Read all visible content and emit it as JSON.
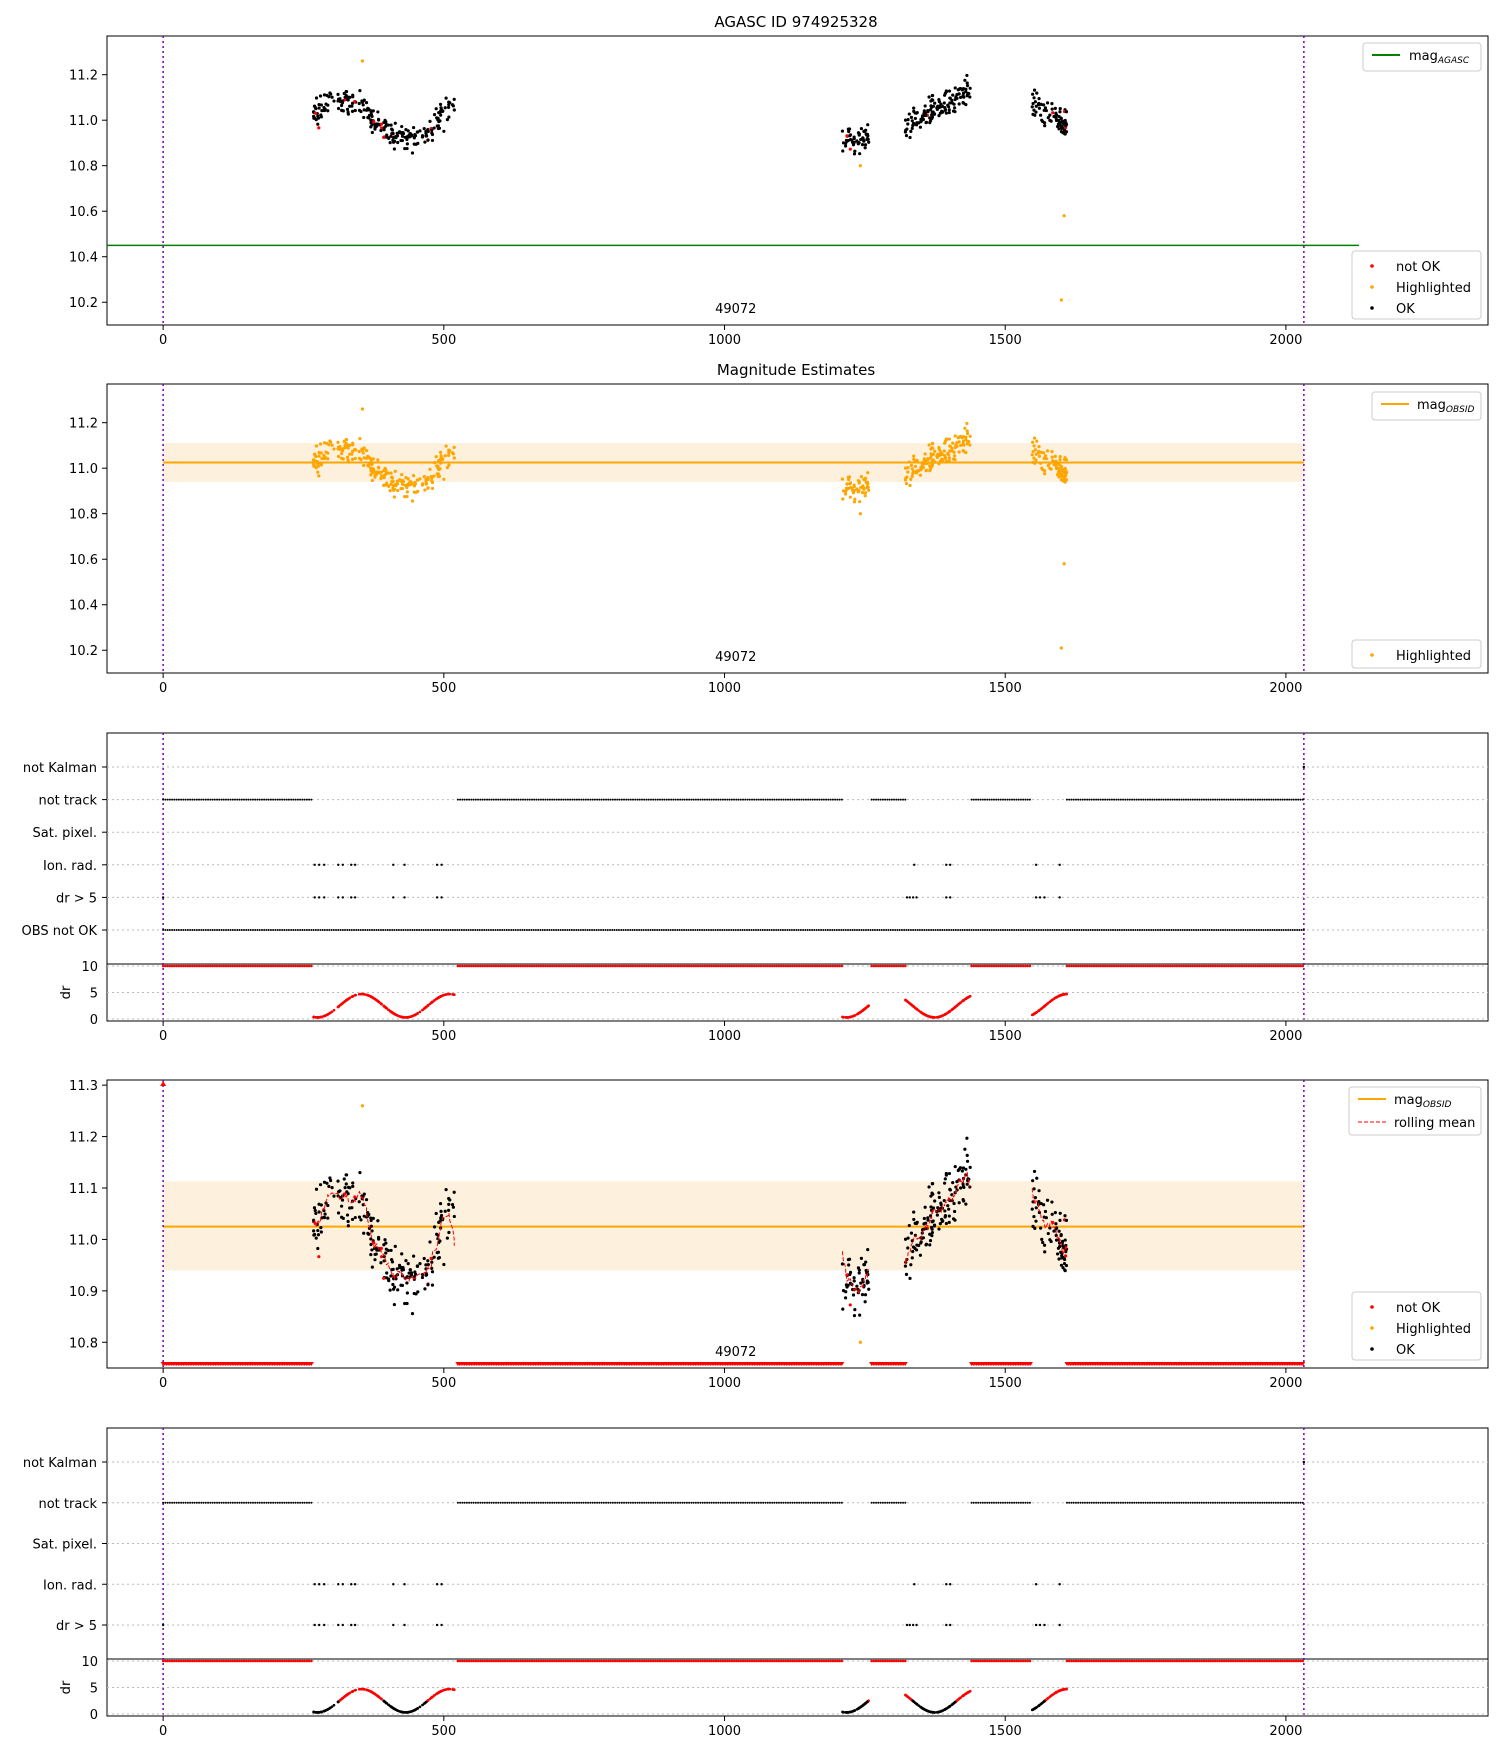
{
  "figure": {
    "title": "AGASC ID 974925328",
    "subtitle": "Magnitude Estimates",
    "obsid_label": "49072"
  },
  "colors": {
    "agasc_line": "#008000",
    "obsid_line": "#ffa500",
    "band": "#fdf0dc",
    "not_ok": "#ff0000",
    "highlighted": "#ffa500",
    "ok": "#000000",
    "vline": "#7b00b0",
    "rolling_mean": "#ff0000"
  },
  "chart_data": [
    {
      "type": "scatter",
      "name": "mag_agasc_panel",
      "x_range": [
        -100,
        2360
      ],
      "ylim": [
        10.1,
        11.37
      ],
      "y_ticks": [
        10.2,
        10.4,
        10.6,
        10.8,
        11.0,
        11.2
      ],
      "x_ticks": [
        0,
        500,
        1000,
        1500,
        2000
      ],
      "mag_agasc": 10.45,
      "obsid_bounds": [
        0,
        2032
      ],
      "annotation": "49072",
      "legend_top": [
        {
          "label": "mag",
          "sub": "AGASC"
        }
      ],
      "legend_bottom": [
        "not OK",
        "Highlighted",
        "OK"
      ],
      "clusters": [
        {
          "x": [
            265,
            525
          ],
          "y_center": 11.03,
          "spread": 0.11
        },
        {
          "x": [
            1210,
            1260
          ],
          "y_center": 10.92,
          "spread": 0.06
        },
        {
          "x": [
            1320,
            1440
          ],
          "y_center": 11.05,
          "spread": 0.06
        },
        {
          "x": [
            1545,
            1610
          ],
          "y_center": 11.04,
          "spread": 0.06
        }
      ],
      "outliers": [
        {
          "x": 1605,
          "y": 10.58
        },
        {
          "x": 1600,
          "y": 10.21
        },
        {
          "x": 355,
          "y": 11.26
        },
        {
          "x": 1242,
          "y": 10.8
        }
      ]
    },
    {
      "type": "scatter",
      "name": "mag_obsid_panel",
      "title": "Magnitude Estimates",
      "x_range": [
        -100,
        2360
      ],
      "ylim": [
        10.1,
        11.37
      ],
      "y_ticks": [
        10.2,
        10.4,
        10.6,
        10.8,
        11.0,
        11.2
      ],
      "x_ticks": [
        0,
        500,
        1000,
        1500,
        2000
      ],
      "mag_obsid": 11.025,
      "band": [
        10.94,
        11.11
      ],
      "annotation": "49072",
      "legend_top": [
        {
          "label": "mag",
          "sub": "OBSID"
        }
      ],
      "legend_bottom": [
        "Highlighted"
      ]
    },
    {
      "type": "scatter",
      "name": "flags_panel_1",
      "categories": [
        "not Kalman",
        "not track",
        "Sat. pixel.",
        "Ion. rad.",
        "dr > 5",
        "OBS not OK"
      ],
      "x_ticks": [
        0,
        500,
        1000,
        1500,
        2000
      ],
      "track_segments": [
        [
          0,
          265
        ],
        [
          525,
          1210
        ],
        [
          1262,
          1322
        ],
        [
          1440,
          1545
        ],
        [
          1610,
          2032
        ]
      ],
      "ion_rad_x": [
        270,
        278,
        287,
        312,
        320,
        335,
        342,
        410,
        430,
        488,
        496,
        1338,
        1395,
        1402,
        1555,
        1597
      ],
      "dr5_x": [
        0,
        270,
        278,
        287,
        312,
        320,
        335,
        342,
        410,
        430,
        488,
        496,
        1325,
        1330,
        1336,
        1342,
        1395,
        1402,
        1555,
        1562,
        1570,
        1597
      ],
      "dr_yticks": [
        0,
        5,
        10
      ],
      "dr_label": "dr"
    },
    {
      "type": "scatter",
      "name": "mag_rolling_panel",
      "x_range": [
        -100,
        2360
      ],
      "ylim": [
        10.75,
        11.31
      ],
      "y_ticks": [
        10.8,
        10.9,
        11.0,
        11.1,
        11.2,
        11.3
      ],
      "x_ticks": [
        0,
        500,
        1000,
        1500,
        2000
      ],
      "mag_obsid": 11.025,
      "band": [
        10.94,
        11.113
      ],
      "annotation": "49072",
      "legend_top": [
        {
          "label": "mag",
          "sub": "OBSID"
        },
        {
          "label": "rolling mean",
          "sub": ""
        }
      ],
      "legend_bottom": [
        "not OK",
        "Highlighted",
        "OK"
      ]
    },
    {
      "type": "scatter",
      "name": "flags_panel_2",
      "categories": [
        "not Kalman",
        "not track",
        "Sat. pixel.",
        "Ion. rad.",
        "dr > 5"
      ],
      "x_ticks": [
        0,
        500,
        1000,
        1500,
        2000
      ],
      "dr_yticks": [
        0,
        5,
        10
      ],
      "dr_label": "dr"
    }
  ]
}
